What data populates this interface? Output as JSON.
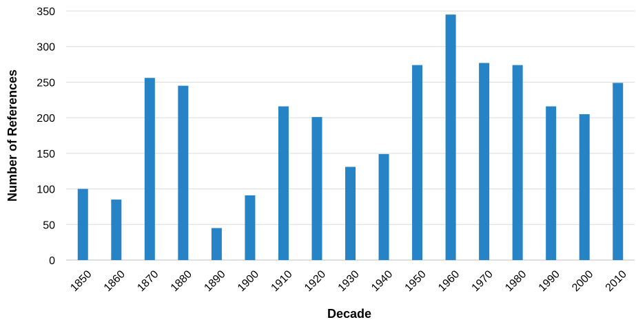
{
  "chart_data": {
    "type": "bar",
    "title": "",
    "xlabel": "Decade",
    "ylabel": "Number of References",
    "categories": [
      "1850",
      "1860",
      "1870",
      "1880",
      "1890",
      "1900",
      "1910",
      "1920",
      "1930",
      "1940",
      "1950",
      "1960",
      "1970",
      "1980",
      "1990",
      "2000",
      "2010"
    ],
    "values": [
      100,
      85,
      256,
      245,
      45,
      91,
      216,
      201,
      131,
      149,
      274,
      345,
      277,
      274,
      216,
      205,
      249
    ],
    "ylim": [
      0,
      350
    ],
    "yticks": [
      "0",
      "50",
      "100",
      "150",
      "200",
      "250",
      "300",
      "350"
    ],
    "grid": true,
    "legend": "none",
    "bar_color": "#2683c6"
  }
}
